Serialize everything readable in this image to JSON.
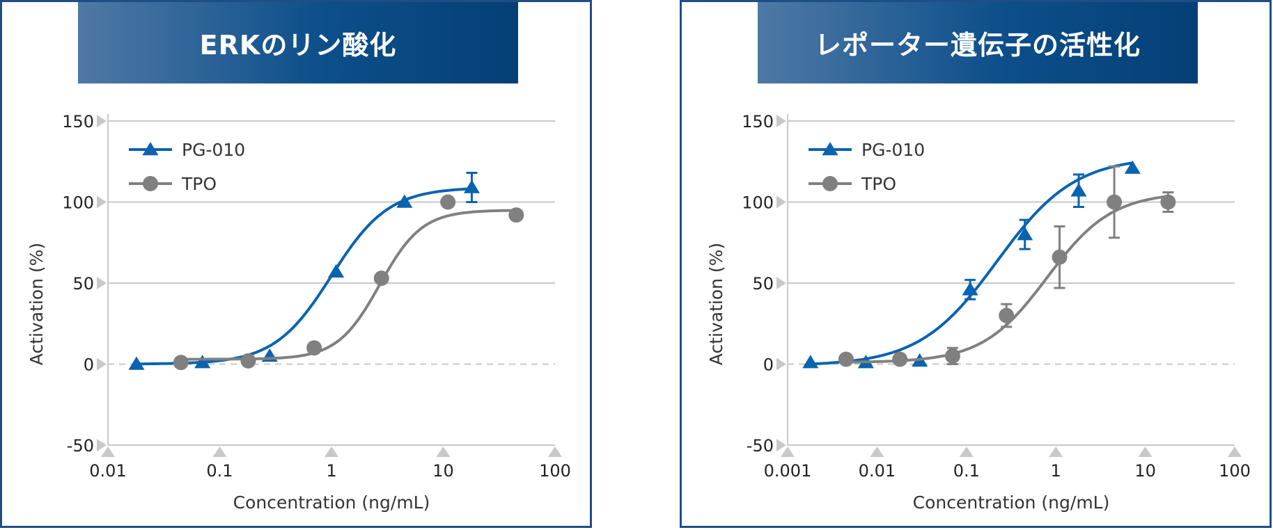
{
  "colors": {
    "blue": "#0a63b0",
    "gray": "#808080",
    "grid": "#c8c8c8",
    "zero": "#c8c8c8",
    "marker_tri": "#c8c8c8",
    "frame": "#1d4f86"
  },
  "chart_data": [
    {
      "type": "scatter",
      "title": "ERKのリン酸化",
      "xlabel": "Concentration (ng/mL)",
      "ylabel": "Activation (%)",
      "xscale": "log",
      "xlim": [
        0.01,
        100
      ],
      "ylim": [
        -50,
        150
      ],
      "xticks": [
        0.01,
        0.1,
        1,
        10,
        100
      ],
      "xtick_labels": [
        "0.01",
        "0.1",
        "1",
        "10",
        "100"
      ],
      "yticks": [
        -50,
        0,
        50,
        100,
        150
      ],
      "ytick_labels": [
        "-50",
        "0",
        "50",
        "100",
        "150"
      ],
      "legend": [
        "PG-010",
        "TPO"
      ],
      "series": [
        {
          "name": "PG-010",
          "marker": "triangle",
          "color": "#0a63b0",
          "x": [
            0.018,
            0.07,
            0.28,
            1.1,
            4.5,
            18
          ],
          "y": [
            0,
            1,
            5,
            57,
            100,
            109
          ],
          "err": [
            0,
            0,
            0,
            0,
            0,
            9
          ],
          "fit": {
            "bottom": 0,
            "top": 109,
            "ec50": 1.0,
            "hill": 1.7
          }
        },
        {
          "name": "TPO",
          "marker": "circle",
          "color": "#808080",
          "x": [
            0.045,
            0.18,
            0.7,
            2.8,
            11,
            45
          ],
          "y": [
            1,
            2,
            10,
            53,
            100,
            92
          ],
          "err": [
            0,
            0,
            0,
            0,
            0,
            0
          ],
          "fit": {
            "bottom": 3,
            "top": 95,
            "ec50": 2.7,
            "hill": 2.3
          }
        }
      ]
    },
    {
      "type": "scatter",
      "title": "レポーター遺伝子の活性化",
      "xlabel": "Concentration (ng/mL)",
      "ylabel": "Activation (%)",
      "xscale": "log",
      "xlim": [
        0.001,
        100
      ],
      "ylim": [
        -50,
        150
      ],
      "xticks": [
        0.001,
        0.01,
        0.1,
        1,
        10,
        100
      ],
      "xtick_labels": [
        "0.001",
        "0.01",
        "0.1",
        "1",
        "10",
        "100"
      ],
      "yticks": [
        -50,
        0,
        50,
        100,
        150
      ],
      "ytick_labels": [
        "-50",
        "0",
        "50",
        "100",
        "150"
      ],
      "legend": [
        "PG-010",
        "TPO"
      ],
      "series": [
        {
          "name": "PG-010",
          "marker": "triangle",
          "color": "#0a63b0",
          "x": [
            0.0018,
            0.0075,
            0.03,
            0.11,
            0.45,
            1.8,
            7.2
          ],
          "y": [
            1,
            1,
            2,
            46,
            80,
            107,
            121
          ],
          "err": [
            0,
            0,
            0,
            6,
            9,
            10,
            0
          ],
          "fit": {
            "bottom": -1,
            "top": 128,
            "ec50": 0.22,
            "hill": 1.0
          }
        },
        {
          "name": "TPO",
          "marker": "circle",
          "color": "#808080",
          "x": [
            0.0045,
            0.018,
            0.07,
            0.28,
            1.1,
            4.5,
            18
          ],
          "y": [
            3,
            3,
            5,
            30,
            66,
            100,
            100
          ],
          "err": [
            0,
            0,
            5,
            7,
            19,
            22,
            6
          ],
          "fit": {
            "bottom": 1,
            "top": 106,
            "ec50": 0.8,
            "hill": 1.2
          }
        }
      ]
    }
  ]
}
